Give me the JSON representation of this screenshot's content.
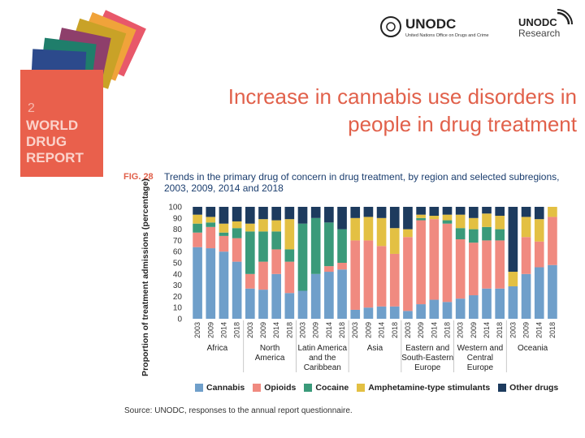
{
  "header": {
    "title_line1": "Increase in cannabis use disorders in",
    "title_line2": "people in drug treatment"
  },
  "logos": {
    "unodc": "UNODC",
    "unodc_subtitle": "United Nations Office on Drugs and Crime",
    "research": "UNODC",
    "research_sub": "Research"
  },
  "report_cover": {
    "number": "2",
    "line1": "WORLD",
    "line2": "DRUG",
    "line3": "REPORT"
  },
  "figure": {
    "label": "FIG. 28",
    "caption": "Trends in the primary drug of concern in drug treatment, by region and selected subregions, 2003, 2009, 2014 and 2018",
    "source": "Source: UNODC, responses to the annual report questionnaire."
  },
  "chart_data": {
    "type": "bar",
    "stacked": true,
    "ylabel": "Proportion of treatment admissions (percentage)",
    "ylim": [
      0,
      100
    ],
    "yticks": [
      0,
      10,
      20,
      30,
      40,
      50,
      60,
      70,
      80,
      90,
      100
    ],
    "grid": false,
    "legend_position": "bottom",
    "categories": [
      "2003",
      "2009",
      "2014",
      "2018",
      "2003",
      "2009",
      "2014",
      "2018",
      "2003",
      "2009",
      "2014",
      "2018",
      "2003",
      "2009",
      "2014",
      "2018",
      "2003",
      "2009",
      "2014",
      "2018",
      "2003",
      "2009",
      "2014",
      "2018",
      "2003",
      "2009",
      "2014",
      "2018"
    ],
    "groups": [
      {
        "label": [
          "Africa"
        ],
        "start": 0,
        "count": 4
      },
      {
        "label": [
          "North",
          "America"
        ],
        "start": 4,
        "count": 4
      },
      {
        "label": [
          "Latin America",
          "and the",
          "Caribbean"
        ],
        "start": 8,
        "count": 4
      },
      {
        "label": [
          "Asia"
        ],
        "start": 12,
        "count": 4
      },
      {
        "label": [
          "Eastern and",
          "South-Eastern",
          "Europe"
        ],
        "start": 16,
        "count": 4
      },
      {
        "label": [
          "Western and",
          "Central",
          "Europe"
        ],
        "start": 20,
        "count": 4
      },
      {
        "label": [
          "Oceania"
        ],
        "start": 24,
        "count": 4
      }
    ],
    "series": [
      {
        "name": "Cannabis",
        "color": "#6f9fca",
        "values": [
          64,
          63,
          60,
          51,
          27,
          26,
          40,
          23,
          25,
          40,
          42,
          44,
          8,
          10,
          11,
          11,
          7,
          13,
          17,
          15,
          18,
          21,
          27,
          27,
          29,
          40,
          46,
          48
        ]
      },
      {
        "name": "Opioids",
        "color": "#f08a80",
        "values": [
          13,
          19,
          14,
          21,
          13,
          25,
          22,
          28,
          0,
          0,
          5,
          6,
          62,
          60,
          54,
          47,
          66,
          75,
          72,
          70,
          53,
          47,
          43,
          43,
          0,
          33,
          23,
          43
        ]
      },
      {
        "name": "Cocaine",
        "color": "#3a9a7a",
        "values": [
          8,
          4,
          3,
          9,
          38,
          27,
          16,
          11,
          60,
          50,
          39,
          30,
          0,
          0,
          0,
          0,
          0,
          2,
          0,
          3,
          10,
          12,
          12,
          10,
          0,
          0,
          0,
          0
        ]
      },
      {
        "name": "Amphetamine-type stimulants",
        "color": "#e3c043",
        "values": [
          8,
          5,
          8,
          6,
          7,
          11,
          10,
          27,
          0,
          0,
          0,
          0,
          20,
          21,
          25,
          23,
          7,
          3,
          3,
          5,
          12,
          10,
          12,
          12,
          13,
          18,
          20,
          9
        ]
      },
      {
        "name": "Other drugs",
        "color": "#1d3b5e",
        "values": [
          7,
          9,
          15,
          13,
          15,
          11,
          12,
          11,
          15,
          10,
          14,
          20,
          10,
          9,
          10,
          19,
          20,
          7,
          8,
          7,
          7,
          10,
          6,
          8,
          58,
          9,
          11,
          0
        ]
      }
    ]
  }
}
